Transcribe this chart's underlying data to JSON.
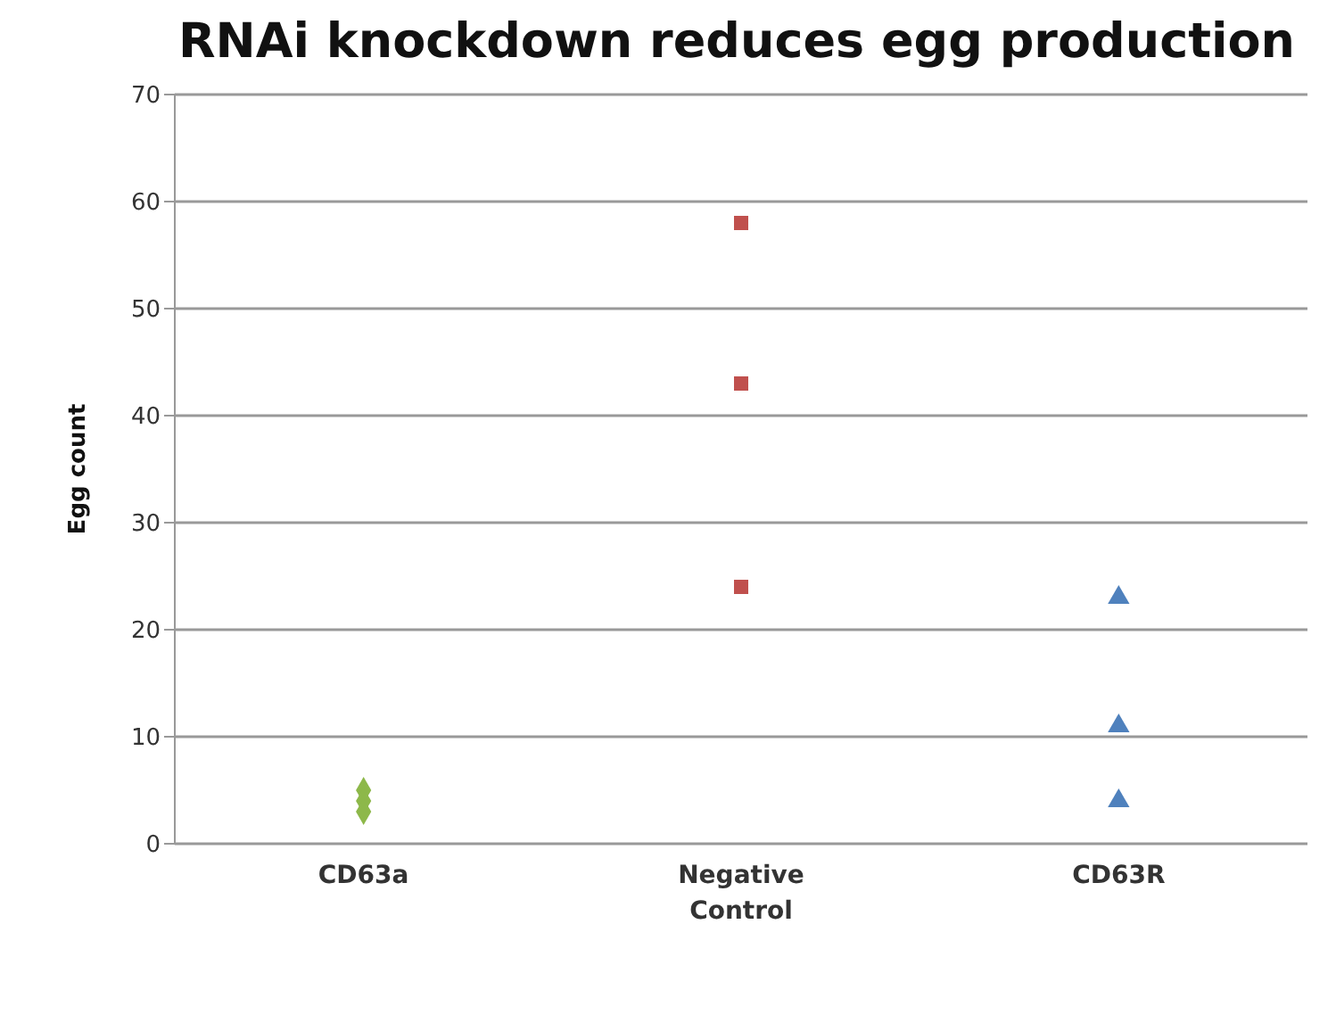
{
  "chart_data": {
    "type": "scatter",
    "title": "RNAi knockdown reduces egg production",
    "ylabel": "Egg count",
    "categories": [
      "CD63a",
      "Negative Control",
      "CD63R"
    ],
    "series": [
      {
        "color": "#8db84a",
        "marker": "diamond",
        "x": [
          "CD63a",
          "CD63a",
          "CD63a"
        ],
        "values": [
          5,
          4,
          3
        ]
      },
      {
        "color": "#c0504d",
        "marker": "square",
        "x": [
          "Negative Control",
          "Negative Control",
          "Negative Control"
        ],
        "values": [
          58,
          43,
          24
        ]
      },
      {
        "color": "#4f81bd",
        "marker": "triangle",
        "x": [
          "CD63R",
          "CD63R",
          "CD63R"
        ],
        "values": [
          23,
          11,
          4
        ]
      }
    ],
    "ylim": [
      0,
      70
    ],
    "yticks": [
      0,
      10,
      20,
      30,
      40,
      50,
      60,
      70
    ],
    "grid": "y",
    "legend": false
  }
}
